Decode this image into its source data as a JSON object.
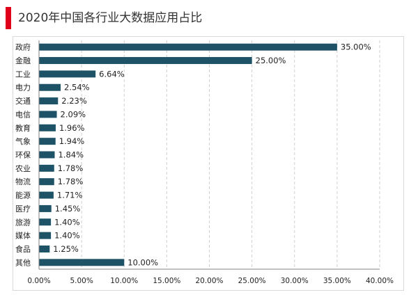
{
  "header": {
    "title": "2020年中国各行业大数据应用占比"
  },
  "colors": {
    "accent": "#e0001a",
    "bar": "#1d5267",
    "grid": "#cfcfcf",
    "axis": "#808080"
  },
  "chart_data": {
    "type": "bar",
    "orientation": "horizontal",
    "title": "2020年中国各行业大数据应用占比",
    "categories": [
      "政府",
      "金融",
      "工业",
      "电力",
      "交通",
      "电信",
      "教育",
      "气象",
      "环保",
      "农业",
      "物流",
      "能源",
      "医疗",
      "旅游",
      "媒体",
      "食品",
      "其他"
    ],
    "values": [
      35.0,
      25.0,
      6.64,
      2.54,
      2.23,
      2.09,
      1.96,
      1.94,
      1.84,
      1.78,
      1.78,
      1.71,
      1.45,
      1.4,
      1.4,
      1.25,
      10.0
    ],
    "value_labels": [
      "35.00%",
      "25.00%",
      "6.64%",
      "2.54%",
      "2.23%",
      "2.09%",
      "1.96%",
      "1.94%",
      "1.84%",
      "1.78%",
      "1.78%",
      "1.71%",
      "1.45%",
      "1.40%",
      "1.40%",
      "1.25%",
      "10.00%"
    ],
    "xlim": [
      0,
      40
    ],
    "xticks": [
      0,
      5,
      10,
      15,
      20,
      25,
      30,
      35,
      40
    ],
    "xtick_labels": [
      "0.00%",
      "5.00%",
      "10.00%",
      "15.00%",
      "20.00%",
      "25.00%",
      "30.00%",
      "35.00%",
      "40.00%"
    ],
    "grid": true,
    "grid_style": "dashed vertical",
    "legend": "none"
  }
}
